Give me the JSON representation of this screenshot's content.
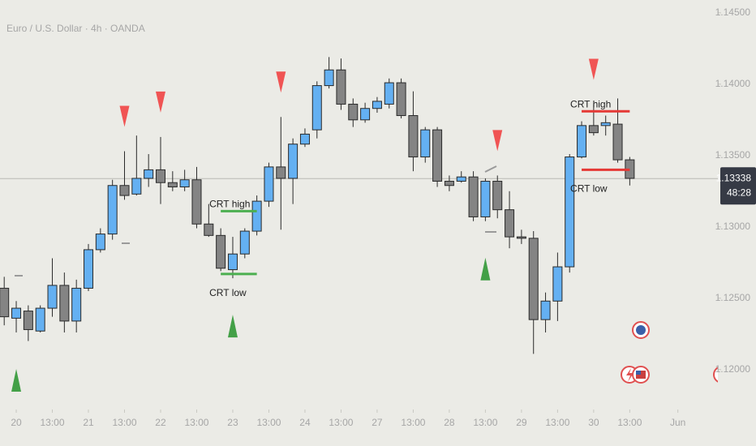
{
  "chart_data": {
    "type": "candlestick",
    "title": "Euro / U.S. Dollar · 4h · OANDA",
    "up_color": "#64b0f2",
    "down_color": "#848484",
    "open": [
      1.1257,
      1.1236,
      1.1241,
      1.1227,
      1.1243,
      1.1259,
      1.1234,
      1.1257,
      1.1284,
      1.1295,
      1.1329,
      1.1323,
      1.1334,
      1.134,
      1.1331,
      1.1328,
      1.1333,
      1.1302,
      1.1294,
      1.127,
      1.1281,
      1.1297,
      1.1318,
      1.1342,
      1.1334,
      1.1358,
      1.1368,
      1.1399,
      1.141,
      1.1386,
      1.1375,
      1.1383,
      1.1386,
      1.1401,
      1.1378,
      1.1349,
      1.1368,
      1.1332,
      1.1332,
      1.1335,
      1.1307,
      1.1332,
      1.1312,
      1.1293,
      1.1292,
      1.1235,
      1.1248,
      1.1272,
      1.1349,
      1.1371,
      1.1371,
      1.1372,
      1.1347
    ],
    "high": [
      1.1265,
      1.1248,
      1.1245,
      1.1245,
      1.1278,
      1.1268,
      1.1263,
      1.1288,
      1.1299,
      1.1333,
      1.1353,
      1.1364,
      1.1351,
      1.1363,
      1.1339,
      1.134,
      1.1342,
      1.1316,
      1.1299,
      1.1293,
      1.1299,
      1.1322,
      1.1345,
      1.1377,
      1.1362,
      1.1369,
      1.1402,
      1.1419,
      1.1418,
      1.139,
      1.1387,
      1.1391,
      1.1404,
      1.1404,
      1.1395,
      1.137,
      1.137,
      1.1336,
      1.1339,
      1.1339,
      1.1334,
      1.1336,
      1.1325,
      1.1298,
      1.1297,
      1.1254,
      1.1282,
      1.1351,
      1.1374,
      1.1386,
      1.1378,
      1.139,
      1.1349
    ],
    "low": [
      1.1231,
      1.1226,
      1.122,
      1.1226,
      1.1237,
      1.1226,
      1.1226,
      1.1255,
      1.1282,
      1.1291,
      1.1319,
      1.1322,
      1.1328,
      1.1316,
      1.1325,
      1.1325,
      1.1299,
      1.1293,
      1.1269,
      1.1264,
      1.1278,
      1.1294,
      1.1314,
      1.1298,
      1.1316,
      1.1356,
      1.1362,
      1.1397,
      1.1382,
      1.137,
      1.1373,
      1.138,
      1.1383,
      1.1376,
      1.1339,
      1.1345,
      1.1328,
      1.1325,
      1.1331,
      1.1304,
      1.1304,
      1.1306,
      1.1285,
      1.1288,
      1.1211,
      1.1226,
      1.1234,
      1.1268,
      1.1348,
      1.1364,
      1.1364,
      1.1345,
      1.1329
    ],
    "close": [
      1.1237,
      1.1243,
      1.1228,
      1.1243,
      1.1259,
      1.1234,
      1.1257,
      1.1284,
      1.1295,
      1.1329,
      1.1322,
      1.1334,
      1.134,
      1.1331,
      1.1328,
      1.1333,
      1.1302,
      1.1294,
      1.1271,
      1.1281,
      1.1297,
      1.1318,
      1.1342,
      1.1334,
      1.1358,
      1.1365,
      1.1399,
      1.141,
      1.1386,
      1.1375,
      1.1383,
      1.1388,
      1.1401,
      1.1378,
      1.1349,
      1.1368,
      1.1332,
      1.1329,
      1.1335,
      1.1307,
      1.1332,
      1.1312,
      1.1293,
      1.1292,
      1.1235,
      1.1248,
      1.1272,
      1.1349,
      1.1371,
      1.1366,
      1.1373,
      1.1347,
      1.1334
    ],
    "xticks": [
      {
        "value": 1,
        "label": "20"
      },
      {
        "value": 4,
        "label": "13:00"
      },
      {
        "value": 7,
        "label": "21"
      },
      {
        "value": 10,
        "label": "13:00"
      },
      {
        "value": 13,
        "label": "22"
      },
      {
        "value": 16,
        "label": "13:00"
      },
      {
        "value": 19,
        "label": "23"
      },
      {
        "value": 22,
        "label": "13:00"
      },
      {
        "value": 25,
        "label": "24"
      },
      {
        "value": 28,
        "label": "13:00"
      },
      {
        "value": 31,
        "label": "27"
      },
      {
        "value": 34,
        "label": "13:00"
      },
      {
        "value": 37,
        "label": "28"
      },
      {
        "value": 40,
        "label": "13:00"
      },
      {
        "value": 43,
        "label": "29"
      },
      {
        "value": 46,
        "label": "13:00"
      },
      {
        "value": 49,
        "label": "30"
      },
      {
        "value": 52,
        "label": "13:00"
      },
      {
        "value": 56,
        "label": "Jun"
      }
    ],
    "ylim": [
      1.1172,
      1.1459
    ],
    "yticks": [
      {
        "value": 1.12,
        "label": "1.12000"
      },
      {
        "value": 1.125,
        "label": "1.12500"
      },
      {
        "value": 1.13,
        "label": "1.13000"
      },
      {
        "value": 1.135,
        "label": "1.13500"
      },
      {
        "value": 1.14,
        "label": "1.14000"
      },
      {
        "value": 1.145,
        "label": "1.14500"
      }
    ],
    "current_price": 1.13338,
    "countdown": "48:28",
    "sell_signals": [
      10,
      13,
      23,
      41,
      49
    ],
    "buy_signals": [
      1,
      19,
      40
    ],
    "sell_color": "#f05454",
    "buy_color": "#43a047",
    "annotations": [
      {
        "label": "CRT high",
        "price": 1.1311,
        "start": 18,
        "end": 21,
        "color": "#4caf50"
      },
      {
        "label": "CRT low",
        "price": 1.1267,
        "start": 18,
        "end": 21,
        "color": "#4caf50"
      },
      {
        "label": "CRT high",
        "price": 1.1381,
        "start": 48,
        "end": 52,
        "color": "#e53935"
      },
      {
        "label": "CRT low",
        "price": 1.134,
        "start": 48,
        "end": 52,
        "color": "#e53935"
      }
    ]
  }
}
